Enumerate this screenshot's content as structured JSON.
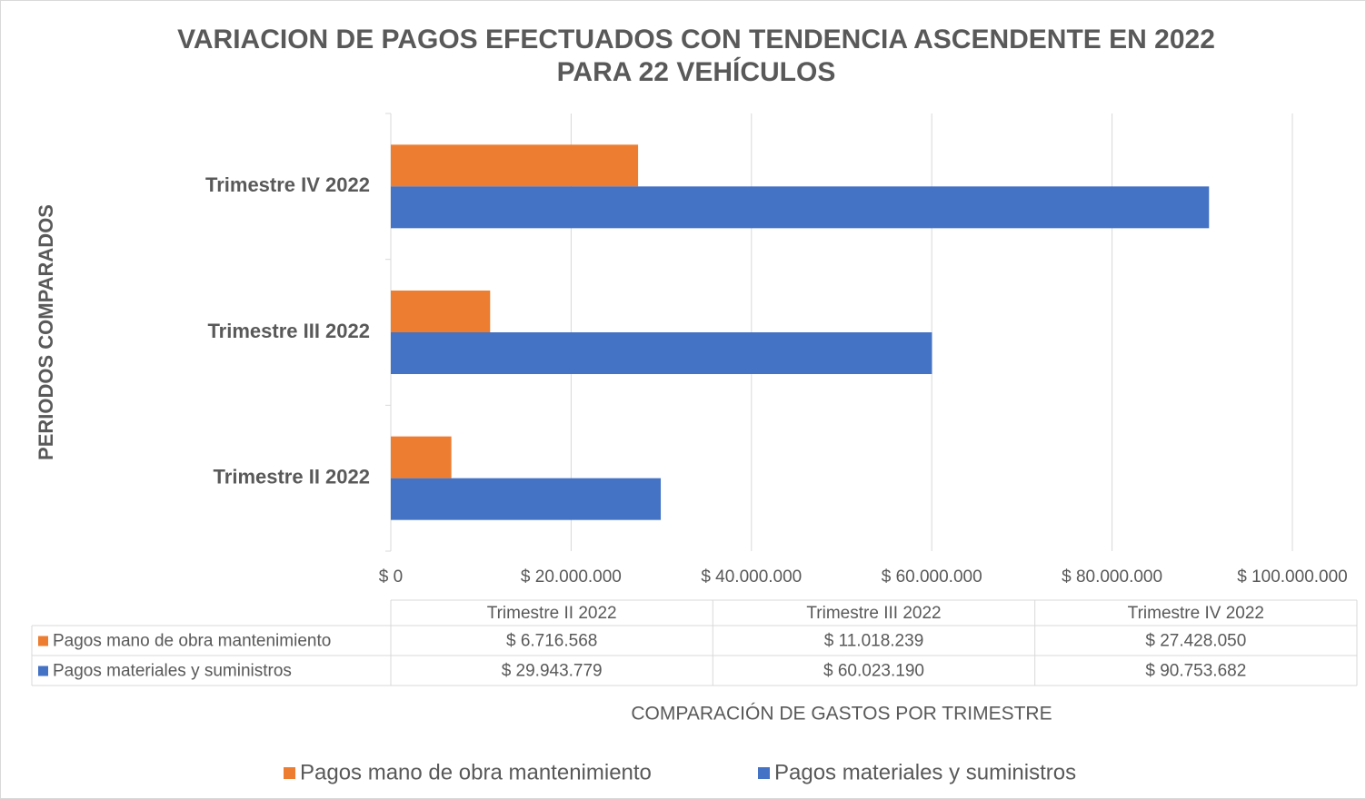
{
  "chart_data": {
    "type": "bar",
    "orientation": "horizontal",
    "title": "VARIACION DE PAGOS EFECTUADOS CON TENDENCIA ASCENDENTE EN 2022 PARA 22 VEHÍCULOS",
    "x_label": "COMPARACIÓN DE GASTOS POR TRIMESTRE",
    "y_label": "PERIODOS COMPARADOS",
    "categories": [
      "Trimestre II 2022",
      "Trimestre III 2022",
      "Trimestre IV 2022"
    ],
    "series": [
      {
        "name": "Pagos mano de obra mantenimiento",
        "color": "#ED7D31",
        "values": [
          6716568,
          11018239,
          27428050
        ],
        "value_labels": [
          "$ 6.716.568",
          "$ 11.018.239",
          "$ 27.428.050"
        ]
      },
      {
        "name": "Pagos materiales y suministros",
        "color": "#4472C4",
        "values": [
          29943779,
          60023190,
          90753682
        ],
        "value_labels": [
          "$ 29.943.779",
          "$ 60.023.190",
          "$ 90.753.682"
        ]
      }
    ],
    "xlim": [
      0,
      100000000
    ],
    "xticks": [
      {
        "value": 0,
        "label": "$ 0"
      },
      {
        "value": 20000000,
        "label": "$ 20.000.000"
      },
      {
        "value": 40000000,
        "label": "$ 40.000.000"
      },
      {
        "value": 60000000,
        "label": "$ 60.000.000"
      },
      {
        "value": 80000000,
        "label": "$ 80.000.000"
      },
      {
        "value": 100000000,
        "label": "$ 100.000.000"
      }
    ],
    "grid": true,
    "legend": "bottom",
    "data_table": true
  }
}
